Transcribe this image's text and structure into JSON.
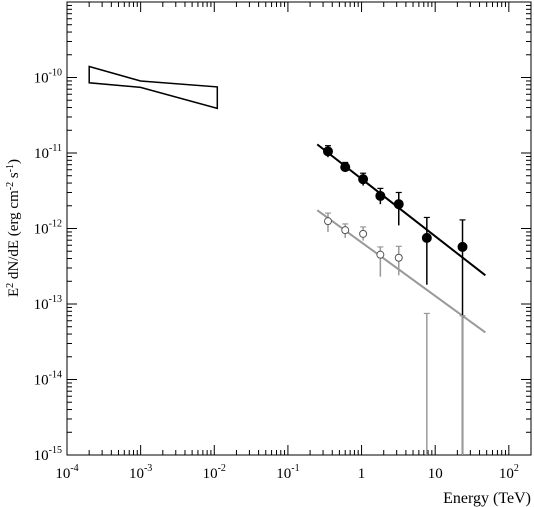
{
  "chart_data": {
    "type": "scatter",
    "x_scale": "log",
    "y_scale": "log",
    "xlim": [
      0.0001,
      200
    ],
    "ylim": [
      1e-15,
      1e-09
    ],
    "xlabel": "Energy (TeV)",
    "ylabel": {
      "main": "E",
      "sup1": "2",
      "mid": " dN/dE (erg cm",
      "sup2": "-2",
      "mid2": " s",
      "sup3": "-1",
      "end": ")"
    },
    "x_ticks": [
      {
        "value": 0.0001,
        "base": "10",
        "exp": "-4"
      },
      {
        "value": 0.001,
        "base": "10",
        "exp": "-3"
      },
      {
        "value": 0.01,
        "base": "10",
        "exp": "-2"
      },
      {
        "value": 0.1,
        "base": "10",
        "exp": "-1"
      },
      {
        "value": 1,
        "base": "1",
        "exp": ""
      },
      {
        "value": 10,
        "base": "10",
        "exp": ""
      },
      {
        "value": 100,
        "base": "10",
        "exp": "2"
      }
    ],
    "y_ticks": [
      {
        "value": 1e-10,
        "base": "10",
        "exp": "-10"
      },
      {
        "value": 1e-11,
        "base": "10",
        "exp": "-11"
      },
      {
        "value": 1e-12,
        "base": "10",
        "exp": "-12"
      },
      {
        "value": 1e-13,
        "base": "10",
        "exp": "-13"
      },
      {
        "value": 1e-14,
        "base": "10",
        "exp": "-14"
      },
      {
        "value": 1e-15,
        "base": "10",
        "exp": "-15"
      }
    ],
    "bowtie": {
      "color": "#000000",
      "points": [
        [
          0.0002,
          1.4e-10
        ],
        [
          0.001,
          9e-11
        ],
        [
          0.011,
          7.5e-11
        ],
        [
          0.011,
          3.9e-11
        ],
        [
          0.001,
          7.4e-11
        ],
        [
          0.0002,
          8.5e-11
        ]
      ]
    },
    "series": [
      {
        "color": "#000000",
        "marker": "filled-circle",
        "points": [
          {
            "x": 0.35,
            "y": 1.05e-11,
            "ylo": 8.8e-12,
            "yhi": 1.25e-11
          },
          {
            "x": 0.6,
            "y": 6.5e-12,
            "ylo": 5.6e-12,
            "yhi": 7.5e-12
          },
          {
            "x": 1.05,
            "y": 4.5e-12,
            "ylo": 3.7e-12,
            "yhi": 5.4e-12
          },
          {
            "x": 1.8,
            "y": 2.7e-12,
            "ylo": 2.1e-12,
            "yhi": 3.4e-12
          },
          {
            "x": 3.2,
            "y": 2.1e-12,
            "ylo": 1.1e-12,
            "yhi": 3e-12
          },
          {
            "x": 7.7,
            "y": 7.5e-13,
            "ylo": 1.8e-13,
            "yhi": 1.4e-12
          },
          {
            "x": 23.5,
            "y": 5.7e-13,
            "ylo": 1e-15,
            "yhi": 1.3e-12
          }
        ],
        "fit": {
          "x": [
            0.25,
            48
          ],
          "y": [
            1.3e-11,
            2.4e-13
          ]
        }
      },
      {
        "color": "#999999",
        "marker": "open-circle",
        "points": [
          {
            "x": 0.35,
            "y": 1.25e-12,
            "ylo": 9e-13,
            "yhi": 1.6e-12
          },
          {
            "x": 0.6,
            "y": 9.5e-13,
            "ylo": 7.5e-13,
            "yhi": 1.15e-12
          },
          {
            "x": 1.05,
            "y": 8.5e-13,
            "ylo": 6.9e-13,
            "yhi": 1.05e-12
          },
          {
            "x": 1.8,
            "y": 4.5e-13,
            "ylo": 2.3e-13,
            "yhi": 5.7e-13
          },
          {
            "x": 3.2,
            "y": 4.1e-13,
            "ylo": 2.4e-13,
            "yhi": 5.8e-13
          },
          {
            "x": 7.7,
            "y": null,
            "ylo": 1e-15,
            "yhi": 7.5e-14
          },
          {
            "x": 23.5,
            "y": null,
            "ylo": 1e-15,
            "yhi": 7e-14
          }
        ],
        "fit": {
          "x": [
            0.25,
            48
          ],
          "y": [
            1.75e-12,
            4.2e-14
          ]
        }
      }
    ]
  }
}
